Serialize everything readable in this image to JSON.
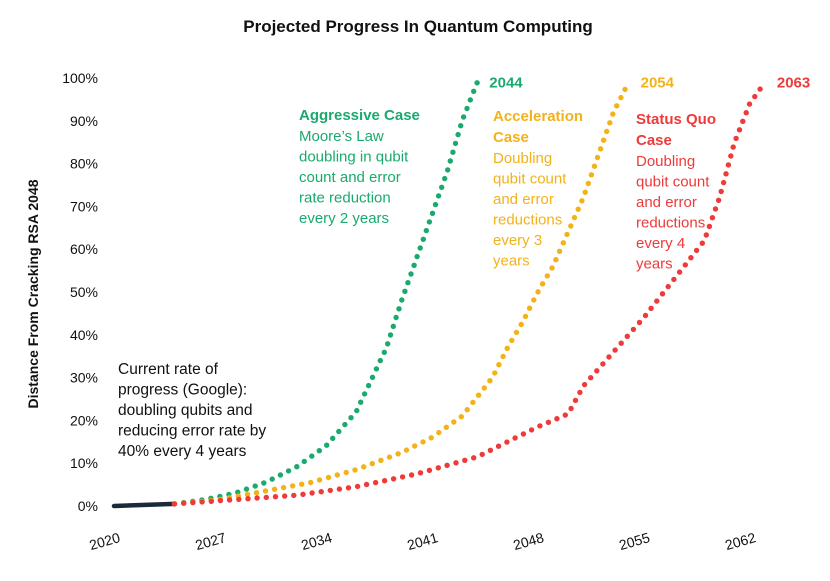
{
  "chart_data": {
    "type": "line",
    "title": "Projected Progress In Quantum Computing",
    "xlabel": "",
    "ylabel": "Distance From Cracking RSA 2048",
    "xlim": [
      2020,
      2064
    ],
    "ylim": [
      0,
      100
    ],
    "x_ticks": [
      "2020",
      "2027",
      "2034",
      "2041",
      "2048",
      "2055",
      "2062"
    ],
    "y_ticks": [
      "0%",
      "10%",
      "20%",
      "30%",
      "40%",
      "50%",
      "60%",
      "70%",
      "80%",
      "90%",
      "100%"
    ],
    "grid": false,
    "current": {
      "color": "#1b2a3a",
      "x": [
        2020,
        2024
      ],
      "y": [
        0,
        0.5
      ],
      "note": [
        "Current rate of",
        "progress (Google):",
        "doubling qubits and",
        "reducing error rate by",
        "40% every 4 years"
      ]
    },
    "series": [
      {
        "color": "#1aaa6e",
        "x": [
          2024,
          2026,
          2028,
          2030,
          2032,
          2034,
          2036,
          2038,
          2039,
          2040,
          2041,
          2042,
          2043,
          2044
        ],
        "y": [
          0.5,
          1.5,
          3,
          5.5,
          9,
          14,
          22,
          37,
          48,
          58,
          68,
          78,
          90,
          99
        ],
        "end_label": "2044",
        "annotation_heading": [
          "Aggressive Case"
        ],
        "annotation_body": [
          "Moore’s Law",
          "doubling in qubit",
          "count and error",
          "rate reduction",
          "every 2 years"
        ]
      },
      {
        "color": "#f2b21a",
        "x": [
          2024,
          2027,
          2030,
          2033,
          2036,
          2039,
          2041,
          2043,
          2045,
          2046,
          2047,
          2048,
          2049,
          2050,
          2051,
          2052,
          2053,
          2054
        ],
        "y": [
          0.5,
          1.5,
          3.5,
          5.5,
          8.5,
          12.5,
          16,
          21,
          30,
          37,
          43,
          50,
          56,
          64,
          72,
          82,
          92,
          99
        ],
        "end_label": "2054",
        "annotation_heading": [
          "Acceleration",
          "Case"
        ],
        "annotation_body": [
          "Doubling",
          "qubit count",
          "and error",
          "reductions",
          "every 3",
          "years"
        ]
      },
      {
        "color": "#ee3a3a",
        "x": [
          2024,
          2028,
          2032,
          2036,
          2040,
          2044,
          2048,
          2050,
          2051,
          2053,
          2055,
          2057,
          2059,
          2060,
          2061,
          2062,
          2063
        ],
        "y": [
          0.5,
          1.5,
          2.5,
          4.5,
          7.5,
          11.5,
          18.5,
          21.5,
          28,
          36,
          44,
          53,
          62,
          72,
          85,
          94,
          99
        ],
        "end_label": "2063",
        "annotation_heading": [
          "Status Quo",
          "Case"
        ],
        "annotation_body": [
          "Doubling",
          "qubit count",
          "and error",
          "reductions",
          "every 4",
          "years"
        ]
      }
    ]
  }
}
